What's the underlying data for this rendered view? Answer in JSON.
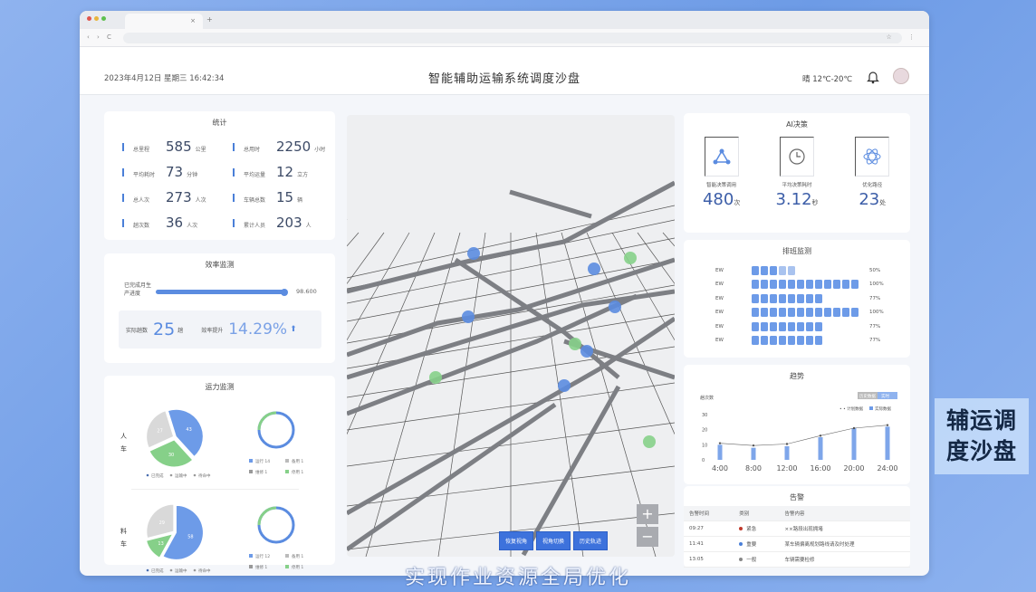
{
  "browser": {
    "tab_close": "×",
    "new_tab": "+",
    "nav": "‹ › C",
    "url_icon": "⌂",
    "right_icons": "☆ ⋮"
  },
  "header": {
    "datetime": "2023年4月12日  星期三  16:42:34",
    "title": "智能辅助运输系统调度沙盘",
    "weather": "晴  12℃-20℃"
  },
  "stats": {
    "title": "统计",
    "items": [
      {
        "label": "总里程",
        "value": "585",
        "unit": "公里"
      },
      {
        "label": "总用时",
        "value": "2250",
        "unit": "小时"
      },
      {
        "label": "平均耗时",
        "value": "73",
        "unit": "分钟"
      },
      {
        "label": "平均运量",
        "value": "12",
        "unit": "立方"
      },
      {
        "label": "总人次",
        "value": "273",
        "unit": "人次"
      },
      {
        "label": "车辆总数",
        "value": "15",
        "unit": "辆"
      },
      {
        "label": "趟次数",
        "value": "36",
        "unit": "人次"
      },
      {
        "label": "累计人员",
        "value": "203",
        "unit": "人"
      }
    ]
  },
  "efficiency": {
    "title": "效率监测",
    "progress_label": "已完成月生产进度",
    "progress_percent": 98,
    "progress_value": "98.600",
    "actual_label": "实际趟数",
    "actual_value": "25",
    "actual_unit": "趟",
    "ratio_label": "效率提升",
    "ratio_value": "14.29%"
  },
  "capacity": {
    "title": "运力监测",
    "groups": [
      {
        "label": "人车",
        "pie": [
          {
            "name": "已完成",
            "value": 43,
            "color": "#6d9be8"
          },
          {
            "name": "运输中",
            "value": 30,
            "color": "#86d089"
          },
          {
            "name": "待命中",
            "value": 27,
            "color": "#d9d9d9"
          }
        ],
        "legend": [
          "已完成",
          "运输中",
          "待命中"
        ],
        "donut_legend": [
          "运行 14",
          "备用 1",
          "维修 1",
          "停用 1"
        ]
      },
      {
        "label": "料车",
        "pie": [
          {
            "name": "已完成",
            "value": 58,
            "color": "#6d9be8"
          },
          {
            "name": "运输中",
            "value": 13,
            "color": "#86d089"
          },
          {
            "name": "待命中",
            "value": 29,
            "color": "#d9d9d9"
          }
        ],
        "legend": [
          "已完成",
          "运输中",
          "待命中"
        ],
        "donut_legend": [
          "运行 12",
          "备用 1",
          "维修 1",
          "停用 1"
        ]
      }
    ]
  },
  "map": {
    "buttons": [
      "恢复视角",
      "视角切换",
      "历史轨迹"
    ],
    "zoom_in": "+",
    "zoom_out": "−"
  },
  "ai": {
    "title": "AI决策",
    "items": [
      {
        "icon": "network-icon",
        "label": "智能决策调用",
        "value": "480",
        "unit": "次"
      },
      {
        "icon": "clock-icon",
        "label": "平均决策耗时",
        "value": "3.12",
        "unit": "秒"
      },
      {
        "icon": "atom-icon",
        "label": "优化路径",
        "value": "23",
        "unit": "处"
      }
    ]
  },
  "schedule": {
    "title": "排班监测",
    "rows": [
      {
        "label": "EW",
        "blocks": 5,
        "pct": "50%"
      },
      {
        "label": "EW",
        "blocks": 12,
        "pct": "100%"
      },
      {
        "label": "EW",
        "blocks": 8,
        "pct": "77%"
      },
      {
        "label": "EW",
        "blocks": 12,
        "pct": "100%"
      },
      {
        "label": "EW",
        "blocks": 8,
        "pct": "77%"
      },
      {
        "label": "EW",
        "blocks": 8,
        "pct": "77%"
      }
    ]
  },
  "chart_data": {
    "type": "bar",
    "title": "趋势",
    "ylabel": "趟次数",
    "toggle": [
      "历史数据",
      "实时"
    ],
    "legend": [
      "计划数据",
      "实际数据"
    ],
    "categories": [
      "4:00",
      "8:00",
      "12:00",
      "16:00",
      "20:00",
      "24:00"
    ],
    "series": [
      {
        "name": "实际数据",
        "values": [
          10,
          8,
          9,
          15,
          21,
          22
        ]
      },
      {
        "name": "计划数据",
        "values": [
          11,
          9.5,
          10.5,
          16,
          21,
          23
        ]
      }
    ],
    "ylim": [
      0,
      30
    ],
    "yticks": [
      0,
      10,
      20,
      30
    ]
  },
  "alarm": {
    "title": "告警",
    "headers": [
      "告警时间",
      "类别",
      "告警内容"
    ],
    "rows": [
      {
        "time": "09:27",
        "level": "紧急",
        "color": "#c0392b",
        "text": "××路段出现拥堵"
      },
      {
        "time": "11:41",
        "level": "重要",
        "color": "#4a7fd8",
        "text": "某车辆偏离规划路线请及时处理"
      },
      {
        "time": "13:05",
        "level": "一般",
        "color": "#888",
        "text": "车辆需要检修"
      }
    ]
  },
  "caption": "辅运调度沙盘",
  "subtitle": "实现作业资源全局优化"
}
